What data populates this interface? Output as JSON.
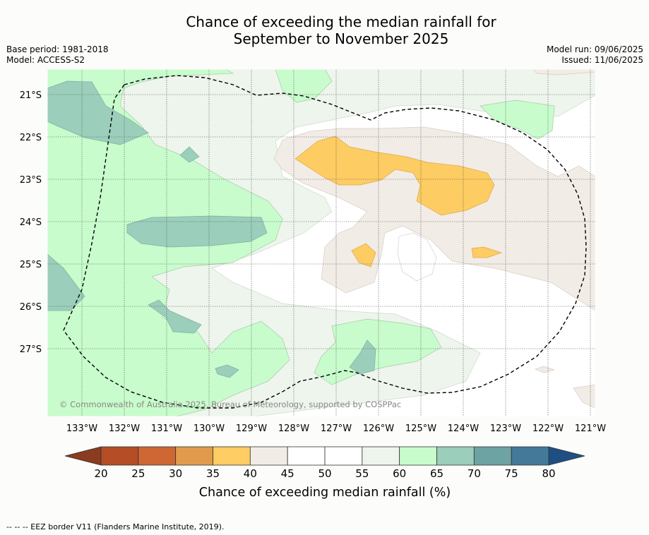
{
  "title": {
    "line1": "Chance of exceeding the median rainfall for",
    "line2": "September to November 2025"
  },
  "info_left": {
    "base_period": "Base period: 1981-2018",
    "model": "Model: ACCESS-S2"
  },
  "info_right": {
    "model_run": "Model run: 09/06/2025",
    "issued": "Issued: 11/06/2025"
  },
  "map": {
    "lat_labels": [
      "21°S",
      "22°S",
      "23°S",
      "24°S",
      "25°S",
      "26°S",
      "27°S"
    ],
    "lon_labels": [
      "133°W",
      "132°W",
      "131°W",
      "130°W",
      "129°W",
      "128°W",
      "127°W",
      "126°W",
      "125°W",
      "124°W",
      "123°W",
      "122°W",
      "121°W"
    ],
    "copyright": "© Commonwealth of Australia 2025, Bureau of Meteorology, supported by COSPPac"
  },
  "colorbar": {
    "ticks": [
      "20",
      "25",
      "30",
      "35",
      "40",
      "45",
      "50",
      "55",
      "60",
      "65",
      "70",
      "75",
      "80"
    ],
    "colors": [
      "#b44c26",
      "#ce6734",
      "#e19a4c",
      "#fdcc62",
      "#f2ece6",
      "#ffffff",
      "#ffffff",
      "#edf5ec",
      "#c8fccc",
      "#9bcebb",
      "#6ea3a3",
      "#44799a"
    ],
    "under_color": "#8a3b20",
    "over_color": "#1f4f82",
    "label": "Chance of exceeding median rainfall (%)"
  },
  "footer": "--  --  -- EEZ border V11 (Flanders Marine Institute, 2019)."
}
